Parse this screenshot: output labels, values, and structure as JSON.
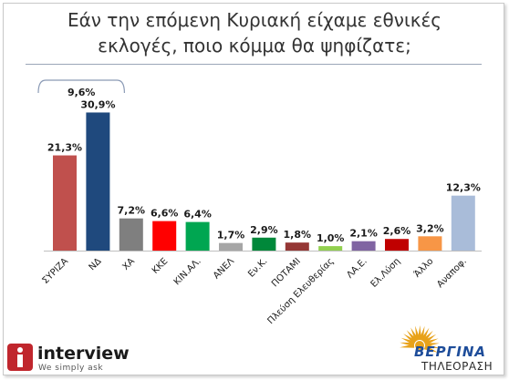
{
  "title_line1": "Εάν την επόμενη Κυριακή είχαμε εθνικές",
  "title_line2": "εκλογές, ποιο κόμμα θα ψηφίζατε;",
  "chart_data": {
    "type": "bar",
    "categories": [
      "ΣΥΡΙΖΑ",
      "ΝΔ",
      "ΧΑ",
      "ΚΚΕ",
      "ΚΙΝ.ΑΛ.",
      "ΑΝΕΛ",
      "Εν.Κ.",
      "ΠΟΤΑΜΙ",
      "Πλεύση Ελευθερίας",
      "ΛΑ.Ε.",
      "Ελ.Λύση",
      "Άλλο",
      "Αναποφ."
    ],
    "values": [
      21.3,
      30.9,
      7.2,
      6.6,
      6.4,
      1.7,
      2.9,
      1.8,
      1.0,
      2.1,
      2.6,
      3.2,
      12.3
    ],
    "value_labels": [
      "21,3%",
      "30,9%",
      "7,2%",
      "6,6%",
      "6,4%",
      "1,7%",
      "2,9%",
      "1,8%",
      "1,0%",
      "2,1%",
      "2,6%",
      "3,2%",
      "12,3%"
    ],
    "colors": [
      "#c0504d",
      "#1f497d",
      "#7f7f7f",
      "#ff0000",
      "#00a651",
      "#a6a6a6",
      "#00883a",
      "#953735",
      "#92d050",
      "#8064a2",
      "#c00000",
      "#f79646",
      "#a9bcd9"
    ],
    "ylim": [
      0,
      33
    ],
    "annotation": {
      "text": "9,6%",
      "between": [
        0,
        1
      ]
    },
    "grid": false,
    "xlabel": "",
    "ylabel": ""
  },
  "logo_left": {
    "name": "interview",
    "tagline": "We simply ask"
  },
  "logo_right": {
    "name": "ΒΕΡΓΙΝΑ",
    "subtitle": "ΤΗΛΕΟΡΑΣΗ"
  }
}
